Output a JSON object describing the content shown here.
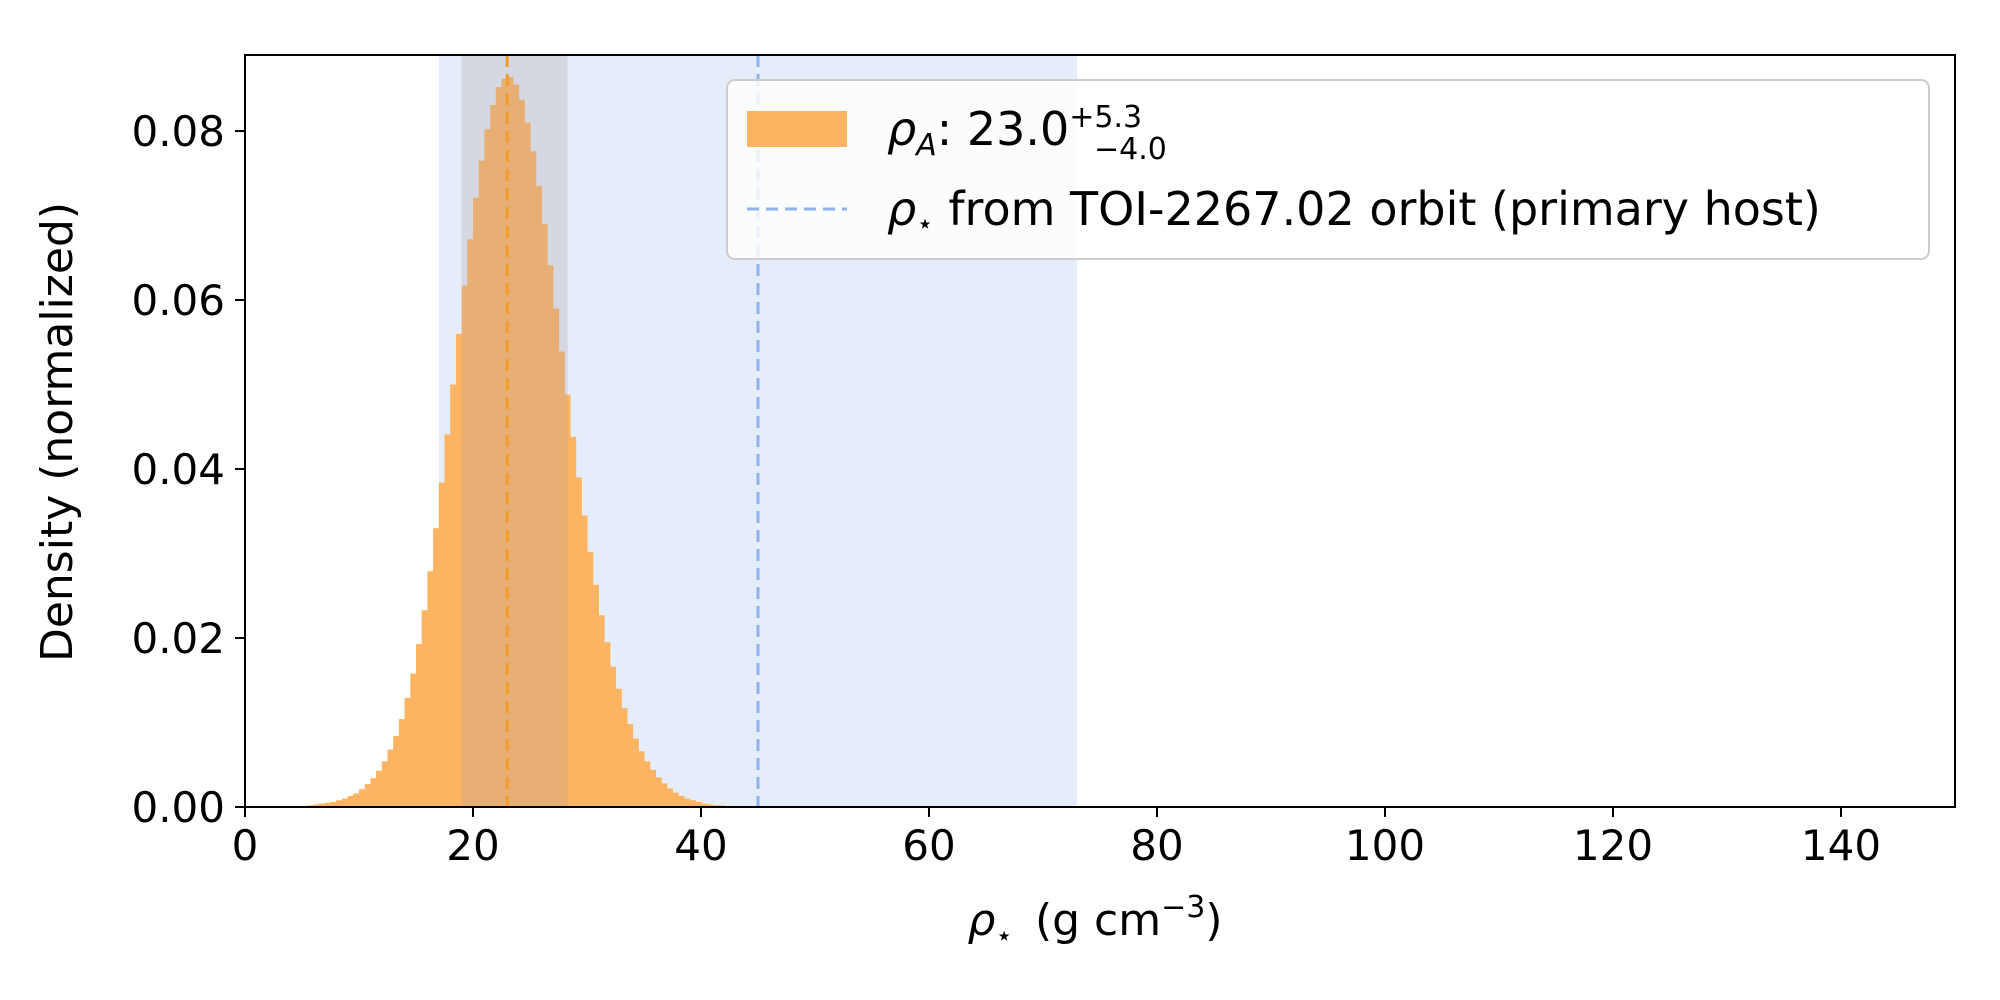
{
  "chart_data": {
    "type": "histogram",
    "xlabel": {
      "symbol": "ρ",
      "subscript": "⋆",
      "units": "(g cm",
      "exponent": "−3",
      "close": ")"
    },
    "ylabel": "Density (normalized)",
    "xlim": [
      0,
      150
    ],
    "ylim": [
      0,
      0.089
    ],
    "xticks": [
      0,
      20,
      40,
      60,
      80,
      100,
      120,
      140
    ],
    "xtick_labels": [
      "0",
      "20",
      "40",
      "60",
      "80",
      "100",
      "120",
      "140"
    ],
    "yticks": [
      0.0,
      0.02,
      0.04,
      0.06,
      0.08
    ],
    "ytick_labels": [
      "0.00",
      "0.02",
      "0.04",
      "0.06",
      "0.08"
    ],
    "grid": false,
    "legend_position": "top-right",
    "colors": {
      "histogram": "#fdb462",
      "host_line": "#8fb4e8",
      "host_band": "#dce7f8",
      "median_line": "#f39c2a",
      "median_band": "#b0a3a0"
    },
    "series": [
      {
        "kind": "histogram",
        "legend": {
          "symbol": "ρ",
          "subscript": "A",
          "value": ": 23.0",
          "upper": "+5.3",
          "lower": "−4.0"
        },
        "bin_width": 0.5,
        "bin_edges_start": 5.0,
        "density": [
          0.0001,
          0.0002,
          0.0003,
          0.0004,
          0.0005,
          0.0006,
          0.0008,
          0.001,
          0.0013,
          0.0016,
          0.0021,
          0.0027,
          0.0034,
          0.0043,
          0.0054,
          0.0068,
          0.0084,
          0.0104,
          0.0129,
          0.0158,
          0.0193,
          0.0233,
          0.0279,
          0.033,
          0.0384,
          0.0441,
          0.05,
          0.056,
          0.0617,
          0.0672,
          0.0721,
          0.0765,
          0.0802,
          0.0831,
          0.0852,
          0.0862,
          0.0864,
          0.0855,
          0.0837,
          0.081,
          0.0776,
          0.0735,
          0.069,
          0.0641,
          0.059,
          0.0539,
          0.0488,
          0.0438,
          0.039,
          0.0345,
          0.0302,
          0.0263,
          0.0227,
          0.0195,
          0.0166,
          0.014,
          0.0117,
          0.0098,
          0.0081,
          0.0066,
          0.0054,
          0.0044,
          0.0035,
          0.0028,
          0.0022,
          0.0017,
          0.0013,
          0.001,
          0.0008,
          0.0006,
          0.0004,
          0.0003,
          0.0002,
          0.0002,
          0.0001,
          0.0001
        ]
      },
      {
        "kind": "vline",
        "legend": {
          "symbol": "ρ",
          "subscript": "⋆",
          "text": " from TOI-2267.02 orbit (primary host)"
        },
        "x": 45
      }
    ],
    "bands": [
      {
        "name": "host-band",
        "xmin": 17,
        "xmax": 73
      },
      {
        "name": "median-band",
        "xmin": 19,
        "xmax": 28.3
      }
    ],
    "median_line_x": 23
  }
}
